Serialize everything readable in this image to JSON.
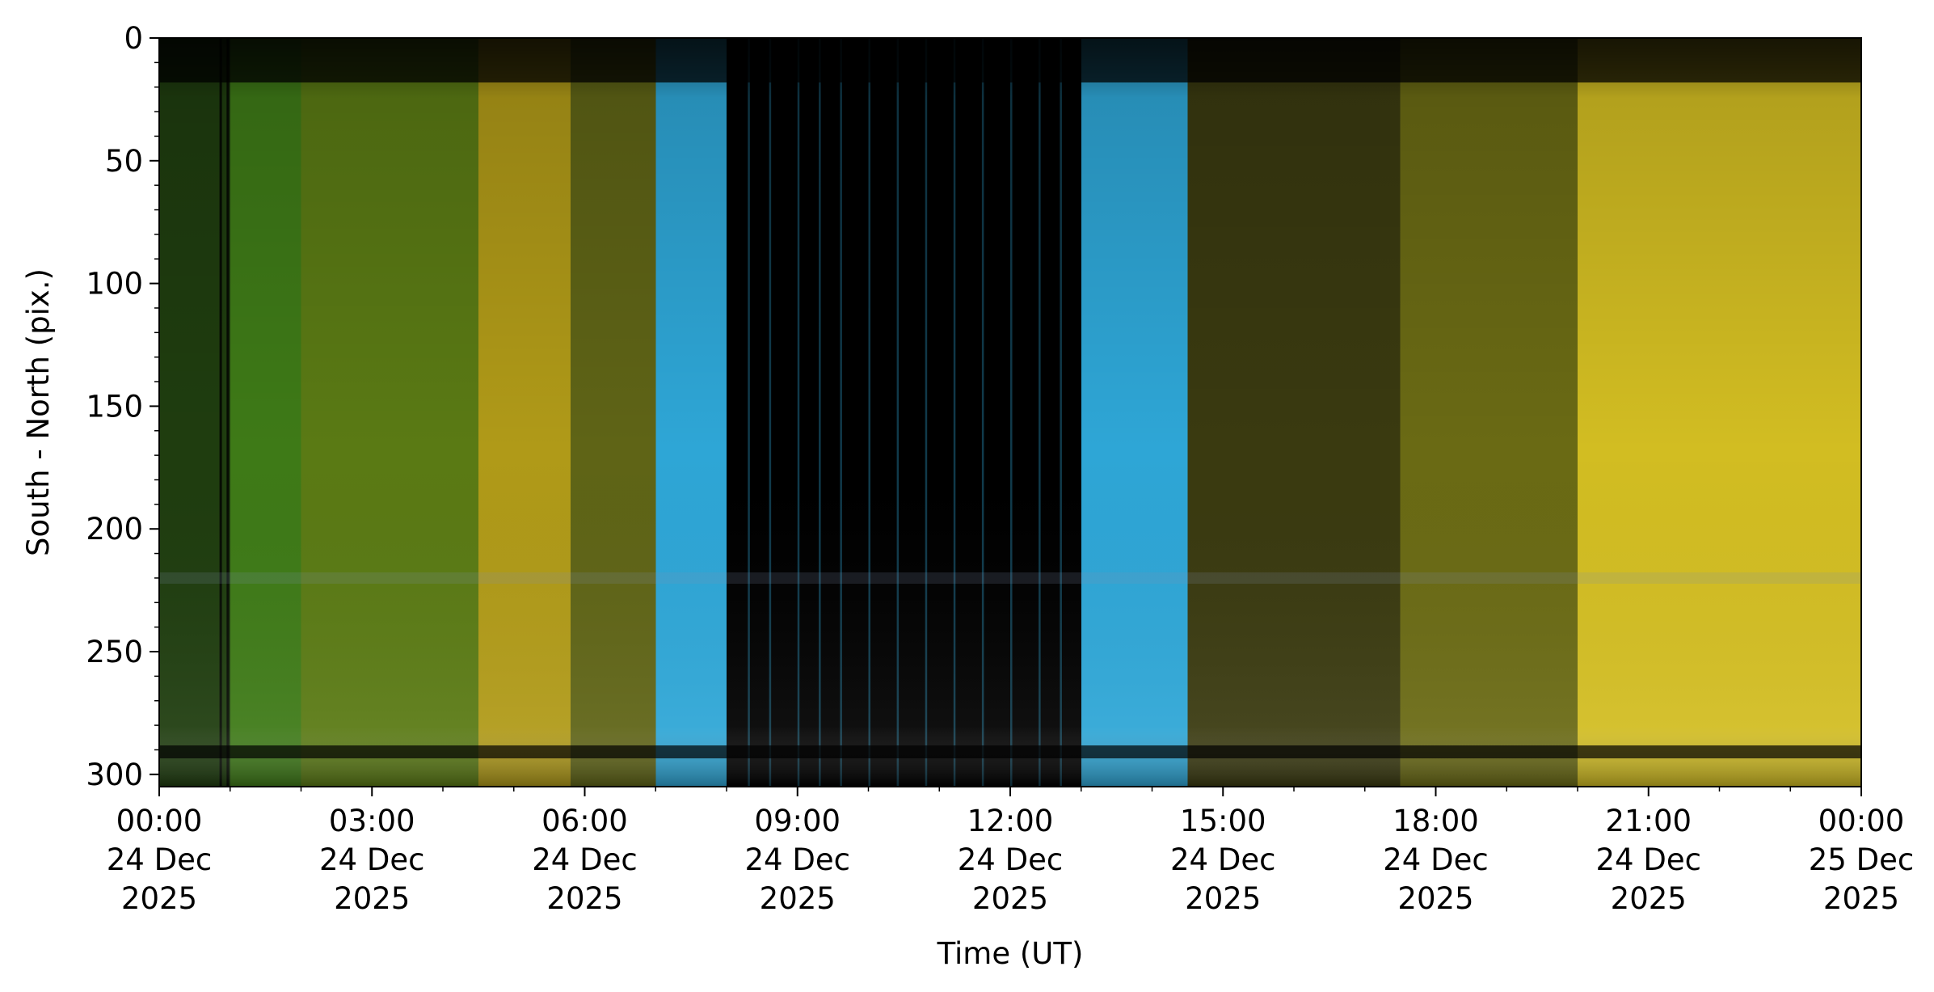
{
  "chart_data": {
    "type": "heatmap",
    "title": "",
    "xlabel": "Time (UT)",
    "ylabel": "South - North (pix.)",
    "x_range": [
      "2025-12-24T00:00",
      "2025-12-25T00:00"
    ],
    "y_range": [
      0,
      305
    ],
    "y_inverted": true,
    "grid": false,
    "x_ticks": [
      {
        "time": "00:00",
        "day": "24 Dec",
        "year": "2025"
      },
      {
        "time": "03:00",
        "day": "24 Dec",
        "year": "2025"
      },
      {
        "time": "06:00",
        "day": "24 Dec",
        "year": "2025"
      },
      {
        "time": "09:00",
        "day": "24 Dec",
        "year": "2025"
      },
      {
        "time": "12:00",
        "day": "24 Dec",
        "year": "2025"
      },
      {
        "time": "15:00",
        "day": "24 Dec",
        "year": "2025"
      },
      {
        "time": "18:00",
        "day": "24 Dec",
        "year": "2025"
      },
      {
        "time": "21:00",
        "day": "24 Dec",
        "year": "2025"
      },
      {
        "time": "00:00",
        "day": "25 Dec",
        "year": "2025"
      }
    ],
    "y_ticks": [
      0,
      50,
      100,
      150,
      200,
      250,
      300
    ],
    "colors": {
      "night_green": "#3e7a17",
      "night_yellow": "#c9b21c",
      "twilight_blue": "#2ea6d6",
      "day_black": "#000000"
    },
    "color_bands": [
      {
        "start_hour": 0.0,
        "end_hour": 1.0,
        "color": "#1f3d0f"
      },
      {
        "start_hour": 1.0,
        "end_hour": 2.0,
        "color": "#3e7a17"
      },
      {
        "start_hour": 2.0,
        "end_hour": 4.5,
        "color": "#5a7a14"
      },
      {
        "start_hour": 4.5,
        "end_hour": 5.8,
        "color": "#b09a18"
      },
      {
        "start_hour": 5.8,
        "end_hour": 7.0,
        "color": "#5f6416"
      },
      {
        "start_hour": 7.0,
        "end_hour": 8.0,
        "color": "#2ea6d6"
      },
      {
        "start_hour": 8.0,
        "end_hour": 13.0,
        "color": "#000000"
      },
      {
        "start_hour": 13.0,
        "end_hour": 14.5,
        "color": "#2ea6d6"
      },
      {
        "start_hour": 14.5,
        "end_hour": 17.5,
        "color": "#3a3a10"
      },
      {
        "start_hour": 17.5,
        "end_hour": 20.0,
        "color": "#6a6a14"
      },
      {
        "start_hour": 20.0,
        "end_hour": 24.0,
        "color": "#d2bd22"
      }
    ]
  }
}
